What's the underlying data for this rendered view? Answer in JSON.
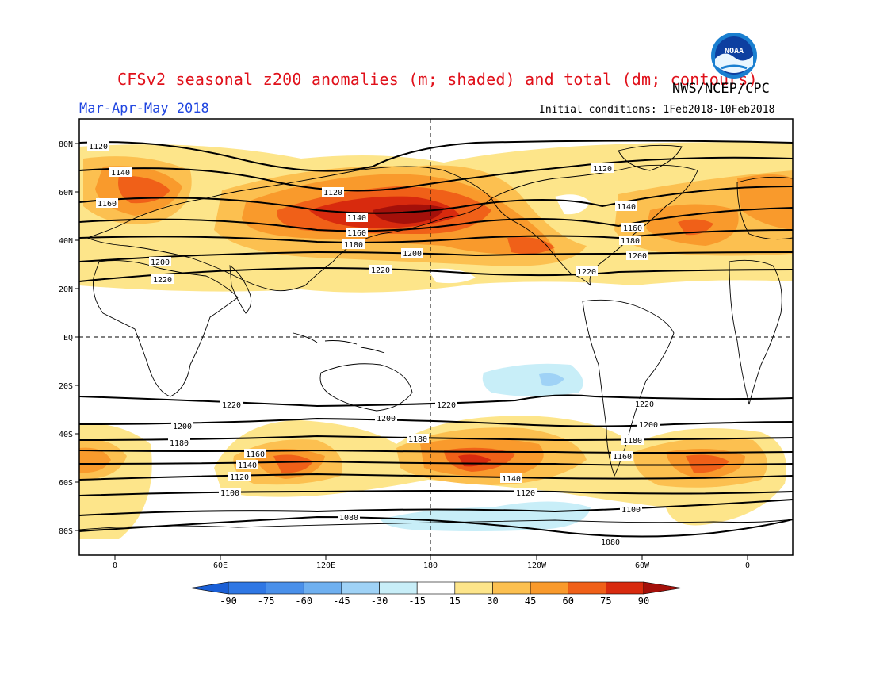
{
  "header": {
    "title": "CFSv2 seasonal z200 anomalies (m; shaded) and total (dm; contours)",
    "agency": "NWS/NCEP/CPC",
    "season": "Mar-Apr-May 2018",
    "initial_conditions": "Initial conditions: 1Feb2018-10Feb2018",
    "logo_text": "NOAA"
  },
  "map": {
    "lat_labels": [
      "80N",
      "60N",
      "40N",
      "20N",
      "EQ",
      "20S",
      "40S",
      "60S",
      "80S"
    ],
    "lon_labels": [
      "0",
      "60E",
      "120E",
      "180",
      "120W",
      "60W",
      "0"
    ],
    "contour_labels": [
      "1120",
      "1140",
      "1160",
      "1200",
      "1220",
      "1120",
      "1140",
      "1160",
      "1180",
      "1200",
      "1220",
      "1120",
      "1140",
      "1160",
      "1180",
      "1200",
      "1220",
      "1220",
      "1200",
      "1180",
      "1160",
      "1140",
      "1120",
      "1100",
      "1220",
      "1200",
      "1180",
      "1140",
      "1120",
      "1080",
      "1220",
      "1200",
      "1180",
      "1160",
      "1100",
      "1080"
    ]
  },
  "colorbar": {
    "labels": [
      "-90",
      "-75",
      "-60",
      "-45",
      "-30",
      "-15",
      "15",
      "30",
      "45",
      "60",
      "75",
      "90"
    ],
    "colors": [
      "#1a5fd6",
      "#2f77e4",
      "#4a90ea",
      "#6fb0f0",
      "#9fd2f6",
      "#c8eef8",
      "#ffffff",
      "#fde58a",
      "#fcc050",
      "#f99a2c",
      "#f06018",
      "#d82a0e",
      "#a4100a"
    ]
  }
}
